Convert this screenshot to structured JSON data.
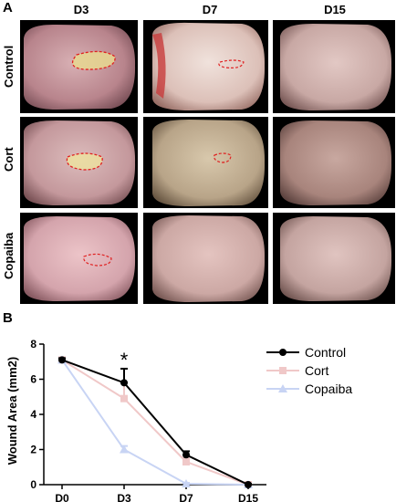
{
  "panels": {
    "a": "A",
    "b": "B"
  },
  "photo_grid": {
    "columns": [
      "D3",
      "D7",
      "D15"
    ],
    "rows": [
      "Control",
      "Cort",
      "Copaiba"
    ]
  },
  "chart_data": {
    "type": "line",
    "categories": [
      "D0",
      "D3",
      "D7",
      "D15"
    ],
    "ylabel": "Wound Area (mm2)",
    "xlabel": "",
    "ylim": [
      0,
      8
    ],
    "yticks": [
      0,
      2,
      4,
      6,
      8
    ],
    "grid": false,
    "legend_position": "right",
    "annotation": {
      "text": "*",
      "at": "D3"
    },
    "series": [
      {
        "name": "Control",
        "color": "#000000",
        "marker": "circle",
        "values": [
          7.1,
          5.8,
          1.7,
          0.0
        ],
        "err": [
          0.1,
          0.8,
          0.2,
          0.05
        ]
      },
      {
        "name": "Cort",
        "color": "#f0c8c8",
        "marker": "square",
        "values": [
          7.1,
          4.9,
          1.3,
          0.0
        ],
        "err": [
          0.1,
          0.9,
          0.2,
          0.05
        ]
      },
      {
        "name": "Copaiba",
        "color": "#c8d4f4",
        "marker": "triangle",
        "values": [
          7.1,
          2.0,
          0.05,
          0.0
        ],
        "err": [
          0.1,
          0.2,
          0.05,
          0.05
        ]
      }
    ]
  }
}
